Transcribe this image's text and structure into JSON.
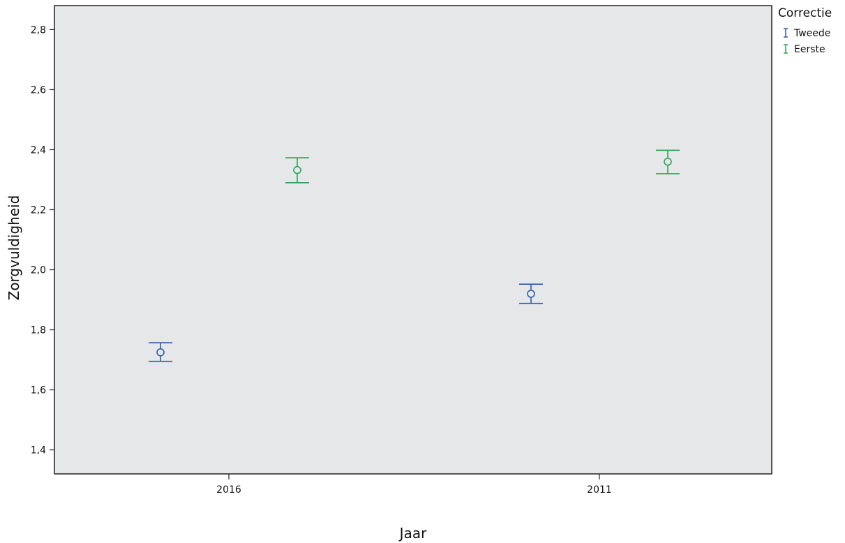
{
  "chart_data": {
    "type": "errorbar",
    "xlabel": "Jaar",
    "ylabel": "Zorgvuldigheid",
    "categories": [
      "2016",
      "2011"
    ],
    "ylim": [
      1.32,
      2.88
    ],
    "yticks": [
      "1,4",
      "1,6",
      "1,8",
      "2,0",
      "2,2",
      "2,4",
      "2,6",
      "2,8"
    ],
    "ytick_values": [
      1.4,
      1.6,
      1.8,
      2.0,
      2.2,
      2.4,
      2.6,
      2.8
    ],
    "grid": false,
    "background": "#e6e7e9",
    "legend": {
      "title": "Correctie",
      "placement": "top-right, outside plot"
    },
    "series": [
      {
        "name": "Tweede",
        "color": "#2a5ea8",
        "mean": [
          1.725,
          1.92
        ],
        "lower": [
          1.695,
          1.888
        ],
        "upper": [
          1.757,
          1.952
        ]
      },
      {
        "name": "Eerste",
        "color": "#2aa556",
        "mean": [
          2.332,
          2.36
        ],
        "lower": [
          2.29,
          2.32
        ],
        "upper": [
          2.373,
          2.398
        ]
      }
    ]
  }
}
